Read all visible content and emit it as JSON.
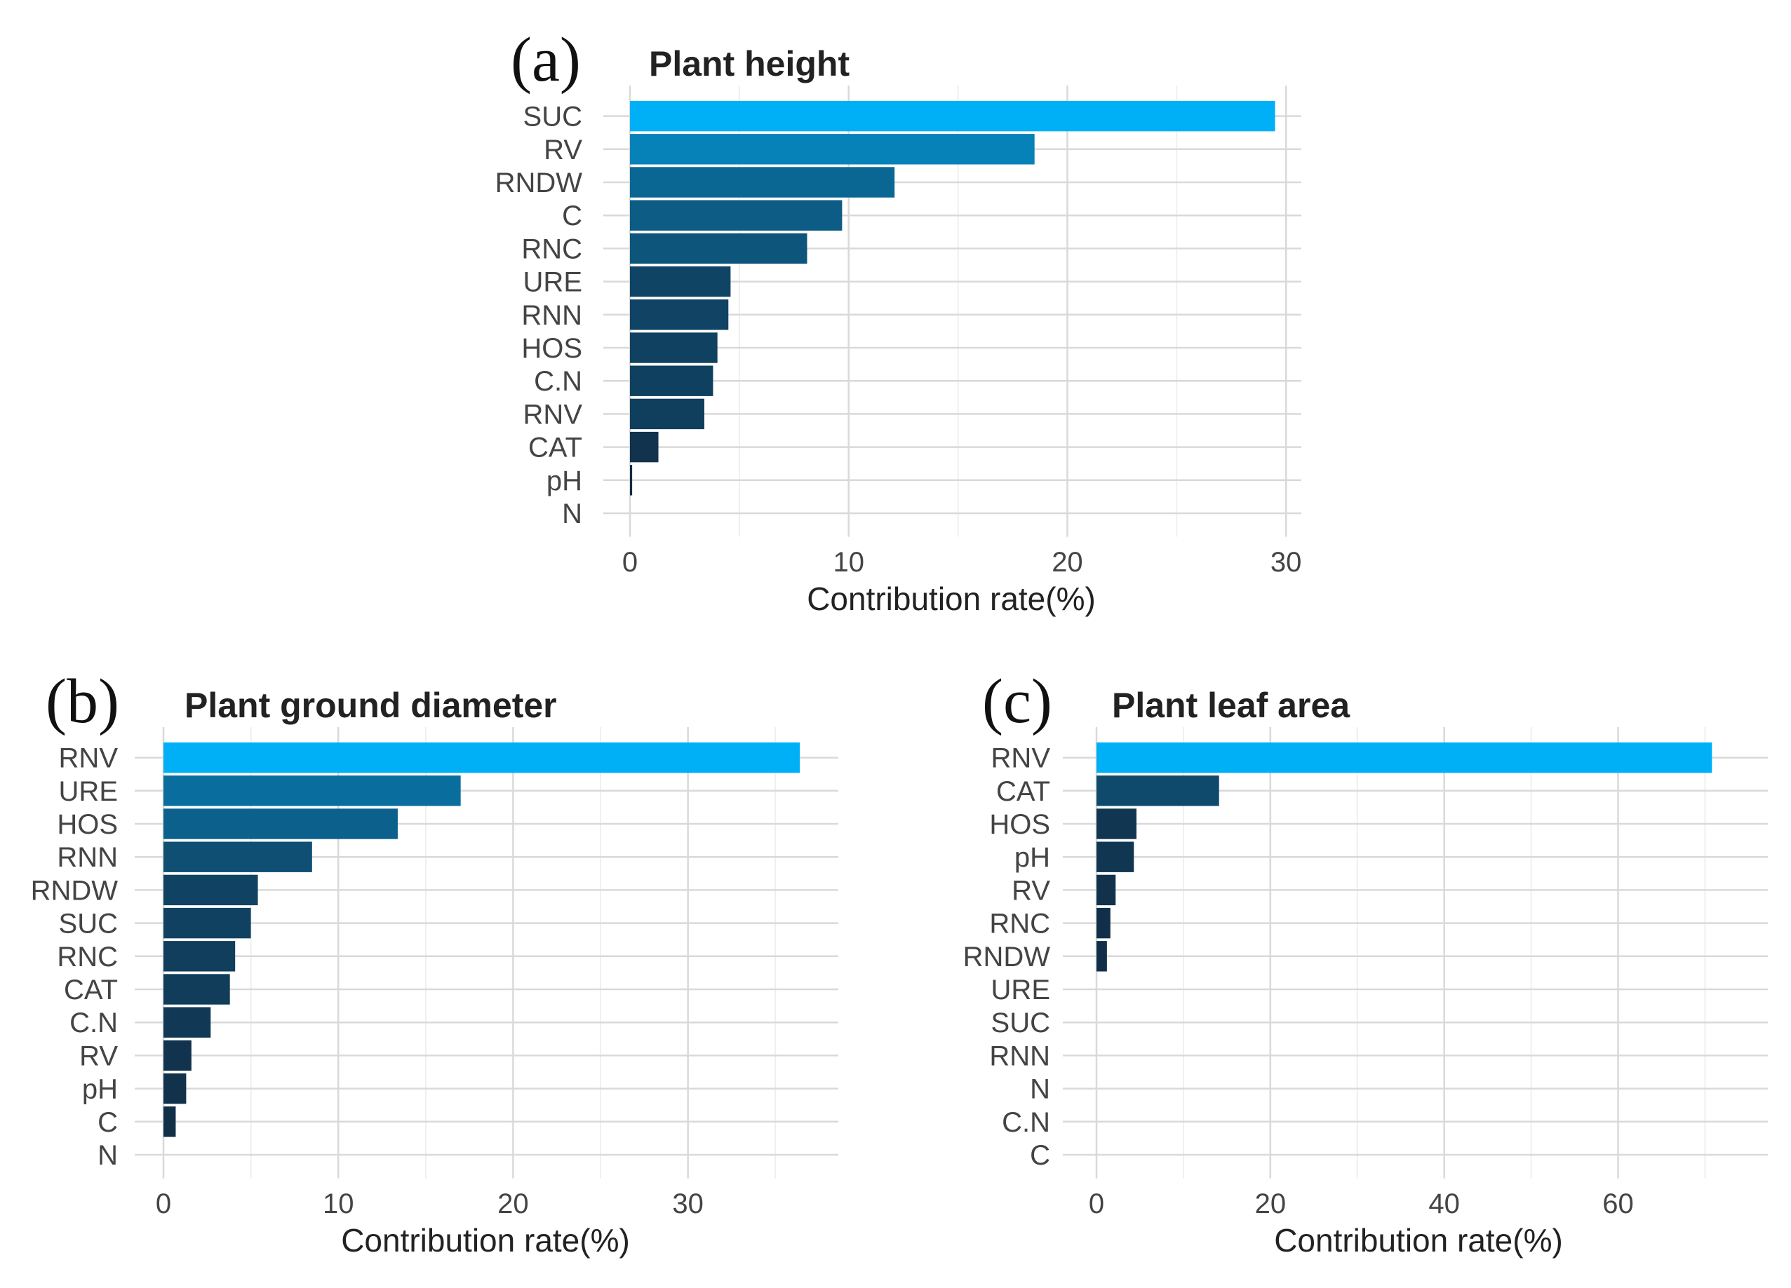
{
  "chart_data": [
    {
      "type": "bar",
      "orientation": "horizontal",
      "panel": "(a)",
      "title": "Plant height",
      "xlabel": "Contribution rate(%)",
      "ylabel": "",
      "xlim": [
        0,
        30.7
      ],
      "xticks": [
        0,
        10,
        20,
        30
      ],
      "categories": [
        "SUC",
        "RV",
        "RNDW",
        "C",
        "RNC",
        "URE",
        "RNN",
        "HOS",
        "C.N",
        "RNV",
        "CAT",
        "pH",
        "N"
      ],
      "values": [
        29.5,
        18.5,
        12.1,
        9.7,
        8.1,
        4.6,
        4.5,
        4.0,
        3.8,
        3.4,
        1.3,
        0.1,
        0.0
      ],
      "grid": true,
      "legend": "none"
    },
    {
      "type": "bar",
      "orientation": "horizontal",
      "panel": "(b)",
      "title": "Plant ground diameter",
      "xlabel": "Contribution rate(%)",
      "ylabel": "",
      "xlim": [
        0,
        38.2
      ],
      "xticks": [
        0,
        10,
        20,
        30
      ],
      "categories": [
        "RNV",
        "URE",
        "HOS",
        "RNN",
        "RNDW",
        "SUC",
        "RNC",
        "CAT",
        "C.N",
        "RV",
        "pH",
        "C",
        "N"
      ],
      "values": [
        36.4,
        17.0,
        13.4,
        8.5,
        5.4,
        5.0,
        4.1,
        3.8,
        2.7,
        1.6,
        1.3,
        0.7,
        0.0
      ],
      "grid": true,
      "legend": "none"
    },
    {
      "type": "bar",
      "orientation": "horizontal",
      "panel": "(c)",
      "title": "Plant leaf area",
      "xlabel": "Contribution rate(%)",
      "ylabel": "",
      "xlim": [
        0,
        74
      ],
      "xticks": [
        0,
        20,
        40,
        60
      ],
      "categories": [
        "RNV",
        "CAT",
        "HOS",
        "pH",
        "RV",
        "RNC",
        "RNDW",
        "URE",
        "SUC",
        "RNN",
        "N",
        "C.N",
        "C"
      ],
      "values": [
        70.8,
        14.1,
        4.6,
        4.3,
        2.2,
        1.6,
        1.2,
        0.0,
        0.0,
        0.0,
        0.0,
        0.0,
        0.0
      ],
      "grid": true,
      "legend": "none"
    }
  ],
  "colors": {
    "bar_high": "#00b0f6",
    "bar_low": "#132b43",
    "grid_major": "#d9d9d9",
    "grid_minor": "#eeeeee",
    "text": "#444444"
  }
}
